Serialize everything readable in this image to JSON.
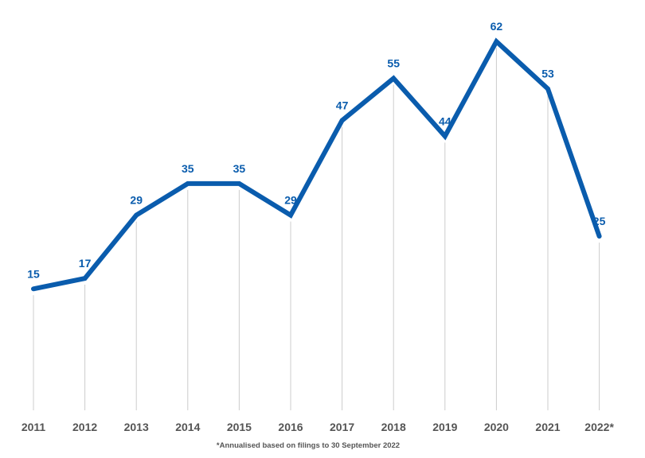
{
  "chart_data": {
    "type": "line",
    "categories": [
      "2011",
      "2012",
      "2013",
      "2014",
      "2015",
      "2016",
      "2017",
      "2018",
      "2019",
      "2020",
      "2021",
      "2022*"
    ],
    "series": [
      {
        "values": [
          15,
          17,
          29,
          35,
          35,
          29,
          47,
          55,
          44,
          62,
          53,
          25
        ]
      }
    ],
    "data_labels": [
      "15",
      "17",
      "29",
      "35",
      "35",
      "29",
      "47",
      "55",
      "44",
      "62",
      "53",
      "25"
    ],
    "footnote": "*Annualised based on filings to 30 September 2022",
    "grid": "vertical drop lines from each point to the x-axis",
    "legend": "none",
    "colors": {
      "line": "#0a5cad",
      "label": "#0a5cad",
      "dropline": "#cccccc",
      "tick": "#555555"
    }
  }
}
